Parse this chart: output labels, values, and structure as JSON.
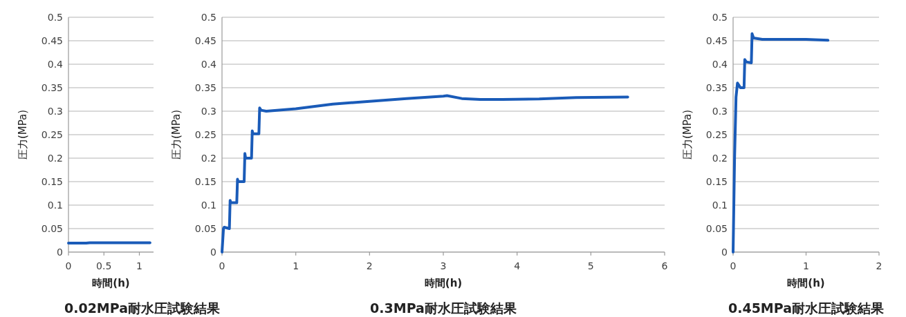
{
  "chart_data": [
    {
      "type": "line",
      "title": "0.02MPa耐水圧試験結果",
      "xlabel": "時間(h)",
      "ylabel": "圧力(MPa)",
      "xlim": [
        0,
        1.2
      ],
      "xticks": [
        0,
        0.5,
        1
      ],
      "ylim": [
        0,
        0.5
      ],
      "yticks": [
        0,
        0.05,
        0.1,
        0.15,
        0.2,
        0.25,
        0.3,
        0.35,
        0.4,
        0.45,
        0.5
      ],
      "grid": "y",
      "series": [
        {
          "color": "#1a5bb8",
          "x": [
            0,
            0.25,
            0.3,
            0.6,
            1.15
          ],
          "values": [
            0.019,
            0.019,
            0.02,
            0.02,
            0.02
          ]
        }
      ]
    },
    {
      "type": "line",
      "title": "0.3MPa耐水圧試験結果",
      "xlabel": "時間(h)",
      "ylabel": "圧力(MPa)",
      "xlim": [
        0,
        6
      ],
      "xticks": [
        0,
        1,
        2,
        3,
        4,
        5,
        6
      ],
      "ylim": [
        0,
        0.5
      ],
      "yticks": [
        0,
        0.05,
        0.1,
        0.15,
        0.2,
        0.25,
        0.3,
        0.35,
        0.4,
        0.45,
        0.5
      ],
      "grid": "y",
      "series": [
        {
          "color": "#1a5bb8",
          "x": [
            0,
            0.02,
            0.03,
            0.1,
            0.11,
            0.12,
            0.2,
            0.21,
            0.22,
            0.3,
            0.31,
            0.32,
            0.4,
            0.41,
            0.42,
            0.5,
            0.51,
            0.53,
            0.6,
            1,
            1.5,
            2,
            2.5,
            3,
            3.05,
            3.25,
            3.5,
            3.8,
            4.3,
            4.8,
            5.5
          ],
          "values": [
            0,
            0.05,
            0.053,
            0.05,
            0.11,
            0.105,
            0.105,
            0.155,
            0.15,
            0.15,
            0.21,
            0.2,
            0.2,
            0.258,
            0.252,
            0.252,
            0.307,
            0.302,
            0.3,
            0.305,
            0.315,
            0.321,
            0.327,
            0.332,
            0.333,
            0.327,
            0.325,
            0.325,
            0.326,
            0.329,
            0.33
          ]
        }
      ]
    },
    {
      "type": "line",
      "title": "0.45MPa耐水圧試験結果",
      "xlabel": "時間(h)",
      "ylabel": "圧力(MPa)",
      "xlim": [
        0,
        2
      ],
      "xticks": [
        0,
        1,
        2
      ],
      "ylim": [
        0,
        0.5
      ],
      "yticks": [
        0,
        0.05,
        0.1,
        0.15,
        0.2,
        0.25,
        0.3,
        0.35,
        0.4,
        0.45,
        0.5
      ],
      "grid": "y",
      "series": [
        {
          "color": "#1a5bb8",
          "x": [
            0,
            0.02,
            0.04,
            0.06,
            0.08,
            0.1,
            0.15,
            0.16,
            0.18,
            0.25,
            0.26,
            0.28,
            0.4,
            0.7,
            1,
            1.3
          ],
          "values": [
            0,
            0.2,
            0.33,
            0.36,
            0.355,
            0.35,
            0.35,
            0.41,
            0.405,
            0.403,
            0.465,
            0.456,
            0.453,
            0.453,
            0.453,
            0.451
          ]
        }
      ]
    }
  ]
}
